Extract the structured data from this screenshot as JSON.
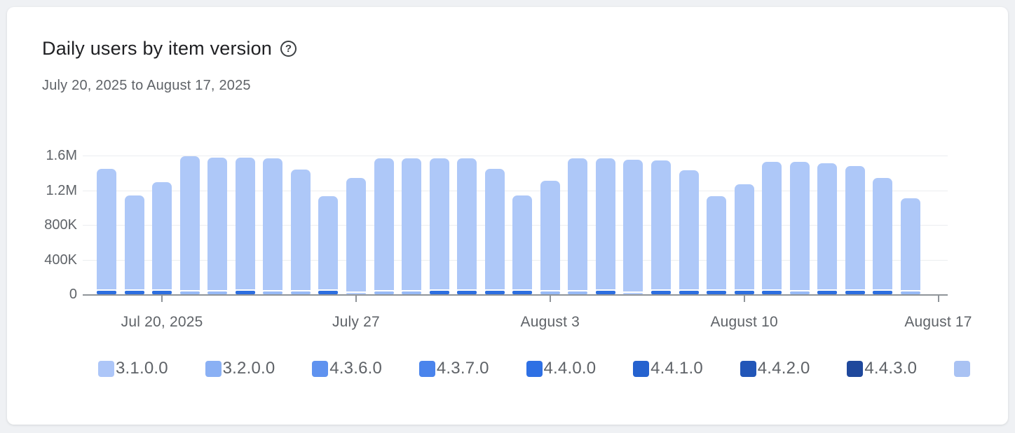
{
  "header": {
    "title": "Daily users by item version",
    "help_glyph": "?",
    "date_range": "July 20, 2025 to August 17, 2025"
  },
  "chart_data": {
    "type": "bar",
    "stacked": true,
    "title": "Daily users by item version",
    "date_range": "July 20, 2025 to August 17, 2025",
    "ylim": [
      0,
      1600000
    ],
    "grid": "horizontal",
    "legend_position": "bottom",
    "y_axis": [
      {
        "label": "1.6M",
        "value": 1600000
      },
      {
        "label": "1.2M",
        "value": 1200000
      },
      {
        "label": "800K",
        "value": 800000
      },
      {
        "label": "400K",
        "value": 400000
      },
      {
        "label": "0",
        "value": 0
      }
    ],
    "x_ticks": [
      {
        "label": "Jul 20, 2025",
        "bar_index": 3
      },
      {
        "label": "July 27",
        "bar_index": 10
      },
      {
        "label": "August 3",
        "bar_index": 17
      },
      {
        "label": "August 10",
        "bar_index": 24
      },
      {
        "label": "August 17",
        "bar_index": 31
      }
    ],
    "bars": {
      "totals": [
        1450000,
        1140000,
        1290000,
        1595000,
        1575000,
        1575000,
        1565000,
        1435000,
        1130000,
        1340000,
        1570000,
        1570000,
        1570000,
        1570000,
        1450000,
        1140000,
        1310000,
        1570000,
        1570000,
        1555000,
        1545000,
        1430000,
        1130000,
        1270000,
        1525000,
        1525000,
        1515000,
        1480000,
        1340000,
        1110000
      ],
      "bottom_segment_values": [
        40000,
        40000,
        40000,
        30000,
        30000,
        40000,
        30000,
        30000,
        40000,
        20000,
        30000,
        30000,
        40000,
        40000,
        40000,
        40000,
        30000,
        30000,
        40000,
        20000,
        40000,
        40000,
        40000,
        40000,
        40000,
        30000,
        40000,
        40000,
        40000,
        30000
      ],
      "bottom_segment_colors": [
        "#2e6fe0",
        "#2e6fe0",
        "#2e6fe0",
        "#98baf6",
        "#98baf6",
        "#2e6fe0",
        "#98baf6",
        "#98baf6",
        "#2e6fe0",
        "#b6cdf9",
        "#98baf6",
        "#98baf6",
        "#2e6fe0",
        "#2e6fe0",
        "#2e6fe0",
        "#2e6fe0",
        "#98baf6",
        "#98baf6",
        "#2e6fe0",
        "#b6cdf9",
        "#2e6fe0",
        "#2e6fe0",
        "#2e6fe0",
        "#2e6fe0",
        "#2e6fe0",
        "#98baf6",
        "#2e6fe0",
        "#2e6fe0",
        "#2e6fe0",
        "#98baf6"
      ]
    },
    "colors": {
      "bar_body": "#aec8f8",
      "axis": "#8f9499",
      "gridline": "#ebedf0",
      "label_text": "#5f6368"
    },
    "legend": [
      {
        "label": "3.1.0.0",
        "color": "#adc6f8"
      },
      {
        "label": "3.2.0.0",
        "color": "#8ab0f4"
      },
      {
        "label": "4.3.6.0",
        "color": "#5f92ef"
      },
      {
        "label": "4.3.7.0",
        "color": "#4a84ec"
      },
      {
        "label": "4.4.0.0",
        "color": "#2e70e4"
      },
      {
        "label": "4.4.1.0",
        "color": "#2562cf"
      },
      {
        "label": "4.4.2.0",
        "color": "#2256b8"
      },
      {
        "label": "4.4.3.0",
        "color": "#1f489c"
      },
      {
        "label": "",
        "color": "#a9c2f3"
      }
    ]
  }
}
